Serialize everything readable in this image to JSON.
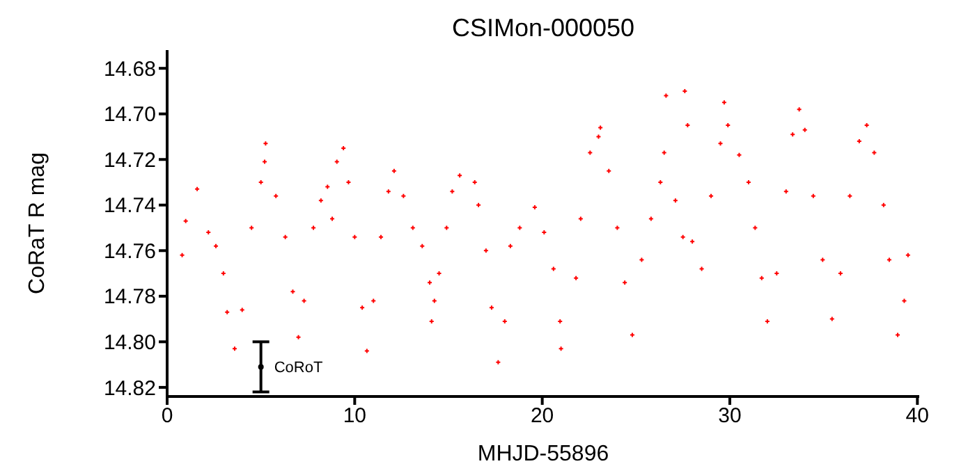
{
  "chart_data": {
    "type": "scatter",
    "title": "CSIMon-000050",
    "xlabel": "MHJD-55896",
    "ylabel": "CoRaT R mag",
    "xlim": [
      0,
      40.1
    ],
    "xticks": [
      0,
      10,
      20,
      30,
      40
    ],
    "ylim": [
      14.824,
      14.672
    ],
    "yticks": [
      14.68,
      {
        "value": 14.7,
        "label": "14.70"
      },
      14.72,
      14.74,
      14.76,
      14.78,
      {
        "value": 14.8,
        "label": "14.80"
      },
      14.82
    ],
    "grid": false,
    "legend": false,
    "marker": "cross",
    "series": [
      {
        "color": "#ff0000",
        "x": [
          0.8,
          0.99,
          1.6,
          2.2,
          2.6,
          3.0,
          3.2,
          3.6,
          4.0,
          4.5,
          5.0,
          5.2,
          5.25,
          5.8,
          6.3,
          6.7,
          7.0,
          7.3,
          7.8,
          8.2,
          8.55,
          8.8,
          9.05,
          9.4,
          9.67,
          10.0,
          10.4,
          10.65,
          11.0,
          11.4,
          11.8,
          12.1,
          12.6,
          13.1,
          13.6,
          14.0,
          14.1,
          14.25,
          14.5,
          14.9,
          15.2,
          15.6,
          16.4,
          16.6,
          17.0,
          17.3,
          17.65,
          18.0,
          18.3,
          18.8,
          19.6,
          20.1,
          20.6,
          20.95,
          21.0,
          21.8,
          22.05,
          22.55,
          23.0,
          23.1,
          23.55,
          24.0,
          24.4,
          24.8,
          25.3,
          25.8,
          26.3,
          26.5,
          26.6,
          27.1,
          27.5,
          27.6,
          27.75,
          28.0,
          28.5,
          29.0,
          29.5,
          29.7,
          29.9,
          30.5,
          31.0,
          31.35,
          31.7,
          32.0,
          32.5,
          33.0,
          33.35,
          33.7,
          34.0,
          34.45,
          34.95,
          35.45,
          35.9,
          36.4,
          36.9,
          37.3,
          37.7,
          38.2,
          38.5,
          38.95,
          39.3,
          39.5
        ],
        "values": [
          14.762,
          14.747,
          14.733,
          14.752,
          14.758,
          14.77,
          14.787,
          14.803,
          14.786,
          14.75,
          14.73,
          14.721,
          14.713,
          14.736,
          14.754,
          14.778,
          14.798,
          14.782,
          14.75,
          14.738,
          14.732,
          14.746,
          14.721,
          14.715,
          14.73,
          14.754,
          14.785,
          14.804,
          14.782,
          14.754,
          14.734,
          14.725,
          14.736,
          14.75,
          14.758,
          14.774,
          14.791,
          14.782,
          14.77,
          14.75,
          14.734,
          14.727,
          14.73,
          14.74,
          14.76,
          14.785,
          14.809,
          14.791,
          14.758,
          14.75,
          14.741,
          14.752,
          14.768,
          14.791,
          14.803,
          14.772,
          14.746,
          14.717,
          14.71,
          14.706,
          14.725,
          14.75,
          14.774,
          14.797,
          14.764,
          14.746,
          14.73,
          14.717,
          14.692,
          14.738,
          14.754,
          14.69,
          14.705,
          14.756,
          14.768,
          14.736,
          14.713,
          14.695,
          14.705,
          14.718,
          14.73,
          14.75,
          14.772,
          14.791,
          14.77,
          14.734,
          14.709,
          14.698,
          14.707,
          14.736,
          14.764,
          14.79,
          14.77,
          14.736,
          14.712,
          14.705,
          14.717,
          14.74,
          14.764,
          14.797,
          14.782,
          14.762
        ]
      },
      {
        "name": "CoRoT",
        "color": "#000000",
        "marker": "circle",
        "x": [
          5
        ],
        "values": [
          14.811
        ],
        "errors": [
          0.011
        ]
      }
    ]
  }
}
